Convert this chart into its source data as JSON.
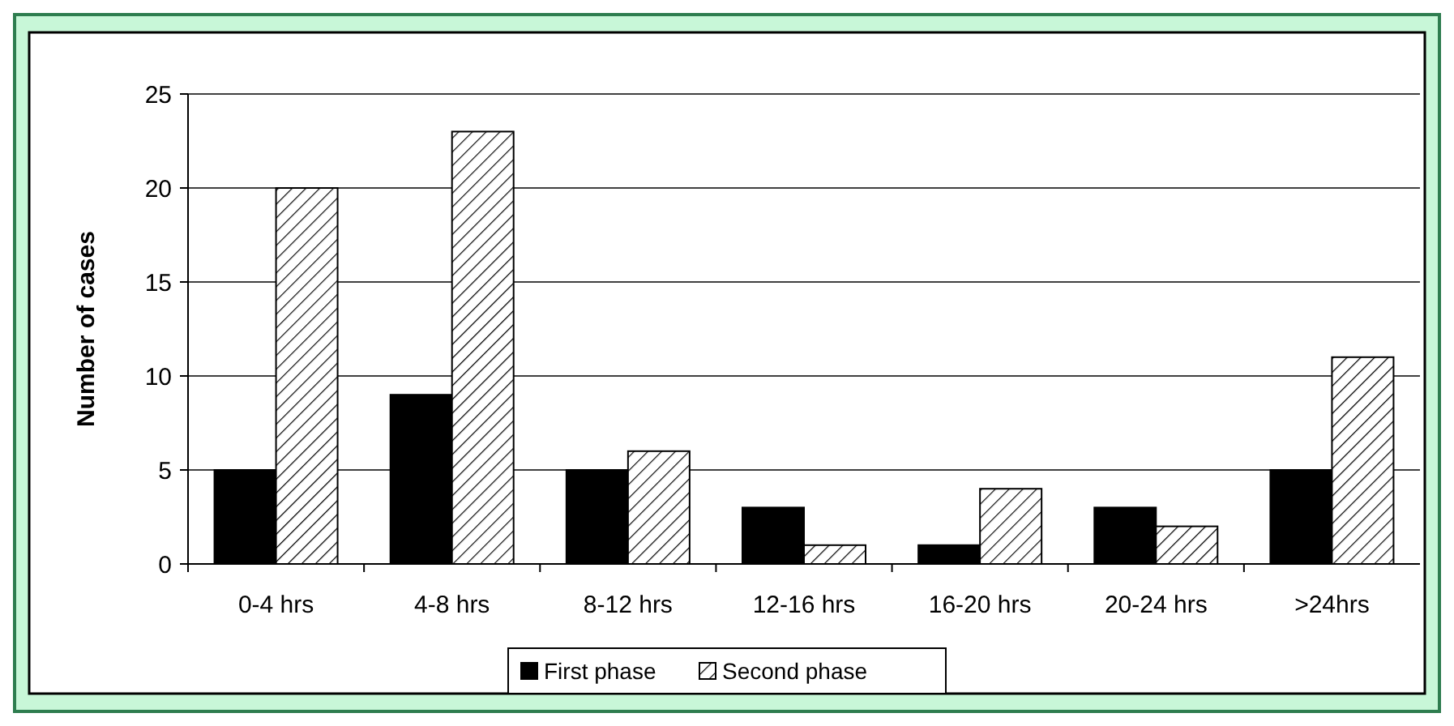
{
  "chart_data": {
    "type": "bar",
    "ylabel": "Number of cases",
    "categories": [
      "0-4 hrs",
      "4-8 hrs",
      "8-12 hrs",
      "12-16 hrs",
      "16-20 hrs",
      "20-24 hrs",
      ">24hrs"
    ],
    "series": [
      {
        "name": "First phase",
        "color": "#000000",
        "values": [
          5,
          9,
          5,
          3,
          1,
          3,
          5
        ]
      },
      {
        "name": "Second phase",
        "color": "#000000",
        "values": [
          20,
          23,
          6,
          1,
          4,
          2,
          11
        ]
      }
    ],
    "ylim": [
      0,
      25
    ],
    "yticks": [
      0,
      5,
      10,
      15,
      20,
      25
    ],
    "grid": "y",
    "legend": "bottom"
  }
}
